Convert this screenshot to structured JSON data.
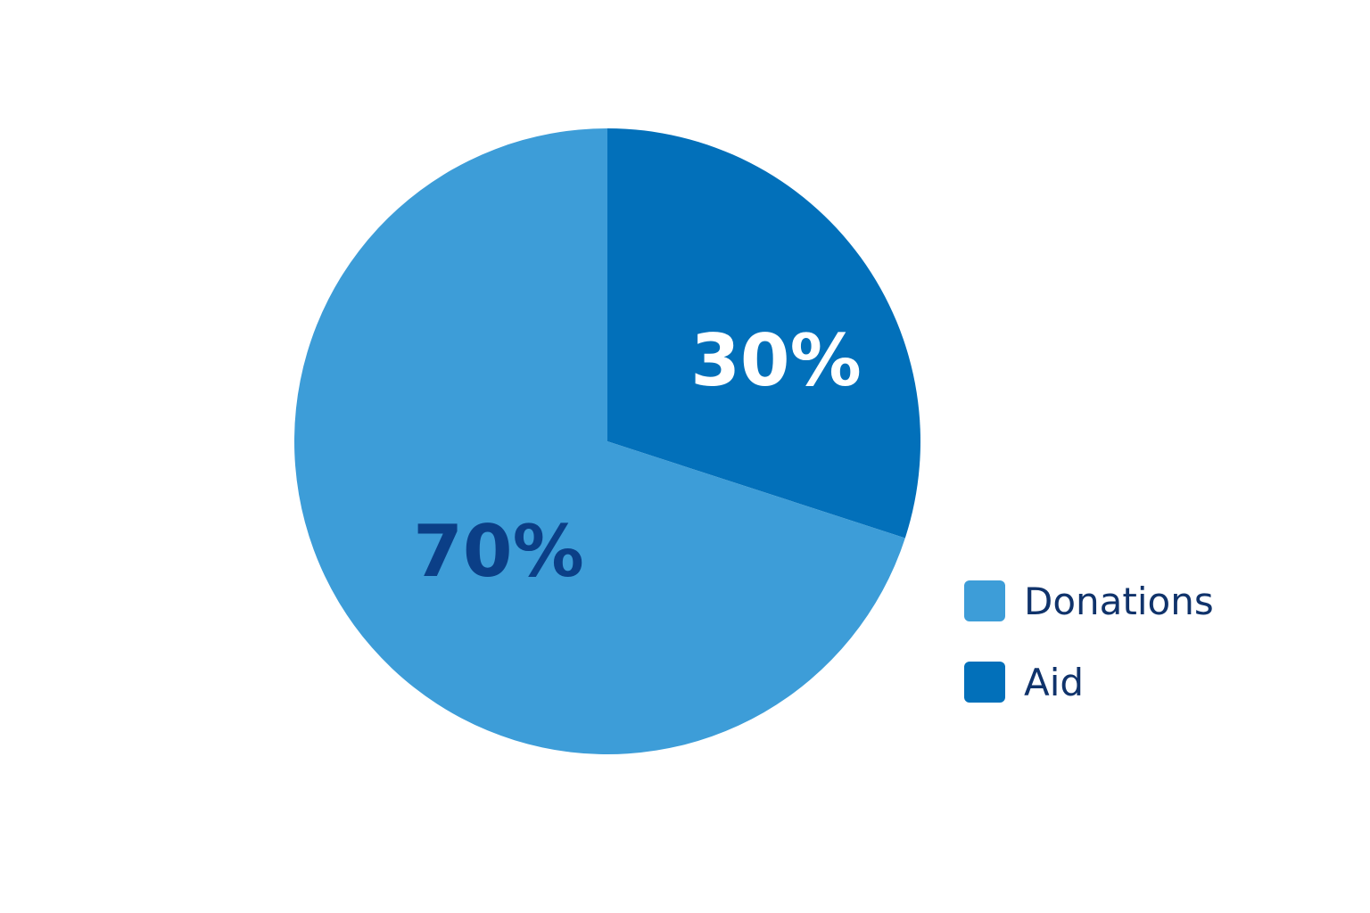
{
  "chart_data": {
    "type": "pie",
    "title": "",
    "slices": [
      {
        "label": "Aid",
        "value": 30,
        "display": "30%",
        "color": "#0270ba",
        "label_color": "#ffffff"
      },
      {
        "label": "Donations",
        "value": 70,
        "display": "70%",
        "color": "#3d9dd8",
        "label_color": "#0b3f87"
      }
    ],
    "start_angle_deg": 0,
    "direction": "clockwise",
    "legend": {
      "position": "bottom-right",
      "items": [
        {
          "label": "Donations",
          "color": "#3d9dd8"
        },
        {
          "label": "Aid",
          "color": "#0270ba"
        }
      ]
    },
    "text_color": "#10336b"
  }
}
